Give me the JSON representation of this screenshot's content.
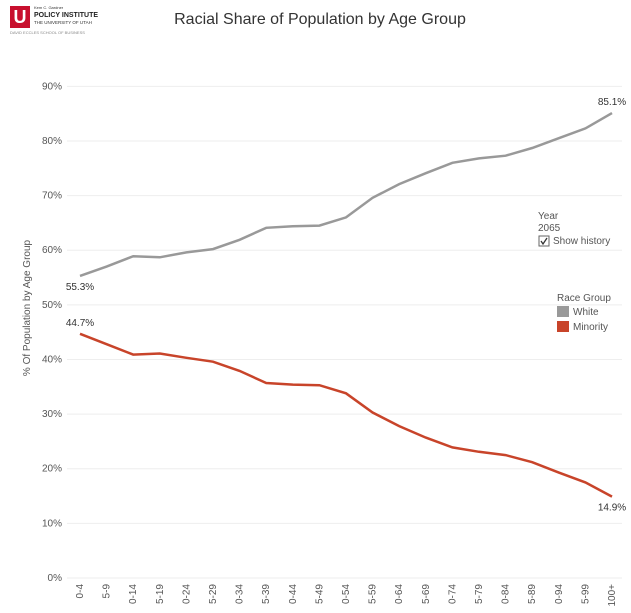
{
  "logo": {
    "letter": "U",
    "top_line": "Kem C. Gardner",
    "name": "POLICY INSTITUTE",
    "university": "THE UNIVERSITY OF UTAH",
    "school": "DAVID ECCLES SCHOOL OF BUSINESS"
  },
  "controls": {
    "year_label": "Year",
    "year_value": "2065",
    "show_history": "Show history"
  },
  "chart_data": {
    "type": "line",
    "title": "Racial Share of Population by Age Group",
    "y_label": "% Of Population by Age Group",
    "legend_title": "Race Group",
    "categories": [
      "0-4",
      "5-9",
      "0-14",
      "5-19",
      "0-24",
      "5-29",
      "0-34",
      "5-39",
      "0-44",
      "5-49",
      "0-54",
      "5-59",
      "0-64",
      "5-69",
      "0-74",
      "5-79",
      "0-84",
      "5-89",
      "0-94",
      "5-99",
      "100+"
    ],
    "series": [
      {
        "name": "White",
        "color": "#999999",
        "values": [
          55.3,
          57.0,
          58.9,
          58.7,
          59.6,
          60.2,
          61.9,
          64.1,
          64.4,
          64.5,
          66.0,
          69.6,
          72.1,
          74.1,
          76.0,
          76.8,
          77.3,
          78.7,
          80.5,
          82.3,
          85.1
        ],
        "value_labels": [
          "55.3%",
          null,
          null,
          null,
          null,
          null,
          null,
          null,
          null,
          null,
          null,
          null,
          null,
          null,
          null,
          null,
          null,
          null,
          null,
          null,
          "85.1%"
        ]
      },
      {
        "name": "Minority",
        "color": "#c8442a",
        "values": [
          44.7,
          42.8,
          40.9,
          41.1,
          40.3,
          39.6,
          37.9,
          35.7,
          35.4,
          35.3,
          33.8,
          30.3,
          27.8,
          25.7,
          23.9,
          23.1,
          22.5,
          21.2,
          19.3,
          17.5,
          14.9
        ],
        "value_labels": [
          "44.7%",
          null,
          null,
          null,
          null,
          null,
          null,
          null,
          null,
          null,
          null,
          null,
          null,
          null,
          null,
          null,
          null,
          null,
          null,
          null,
          "14.9%"
        ]
      }
    ],
    "ylim": [
      0,
      95
    ],
    "yticks": [
      {
        "value": 0,
        "label": "0%"
      },
      {
        "value": 10,
        "label": "10%"
      },
      {
        "value": 20,
        "label": "20%"
      },
      {
        "value": 30,
        "label": "30%"
      },
      {
        "value": 40,
        "label": "40%"
      },
      {
        "value": 50,
        "label": "50%"
      },
      {
        "value": 60,
        "label": "60%"
      },
      {
        "value": 70,
        "label": "70%"
      },
      {
        "value": 80,
        "label": "80%"
      },
      {
        "value": 90,
        "label": "90%"
      }
    ],
    "grid": true
  }
}
